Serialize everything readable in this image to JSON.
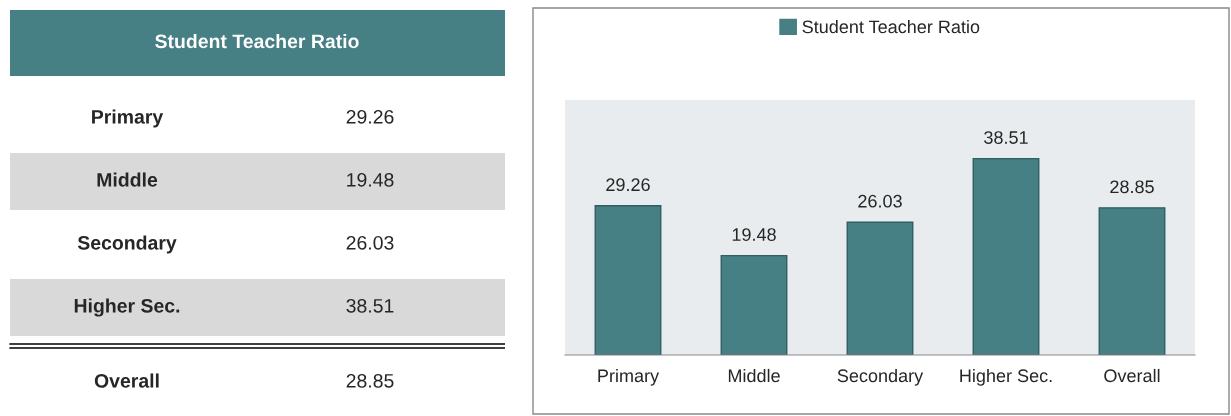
{
  "chart_data": [
    {
      "type": "other",
      "title": "Student Teacher Ratio",
      "categories": [
        "Primary",
        "Middle",
        "Secondary",
        "Higher Sec.",
        "Overall"
      ],
      "values": [
        29.26,
        19.48,
        26.03,
        38.51,
        28.85
      ],
      "colors": [
        "#ffffff",
        "#d9d9d9",
        "#ffffff",
        "#d9d9d9",
        "#ffffff"
      ],
      "data_labels": true
    },
    {
      "type": "bar",
      "categories": [
        "Primary",
        "Middle",
        "Secondary",
        "Higher Sec.",
        "Overall"
      ],
      "series": [
        {
          "name": "Student Teacher Ratio",
          "color": "#467f84",
          "values": [
            29.26,
            19.48,
            26.03,
            38.51,
            28.85
          ]
        }
      ],
      "ylim": [
        0,
        50
      ],
      "tick_labels": "x",
      "legend": "top",
      "data_labels": true
    }
  ]
}
